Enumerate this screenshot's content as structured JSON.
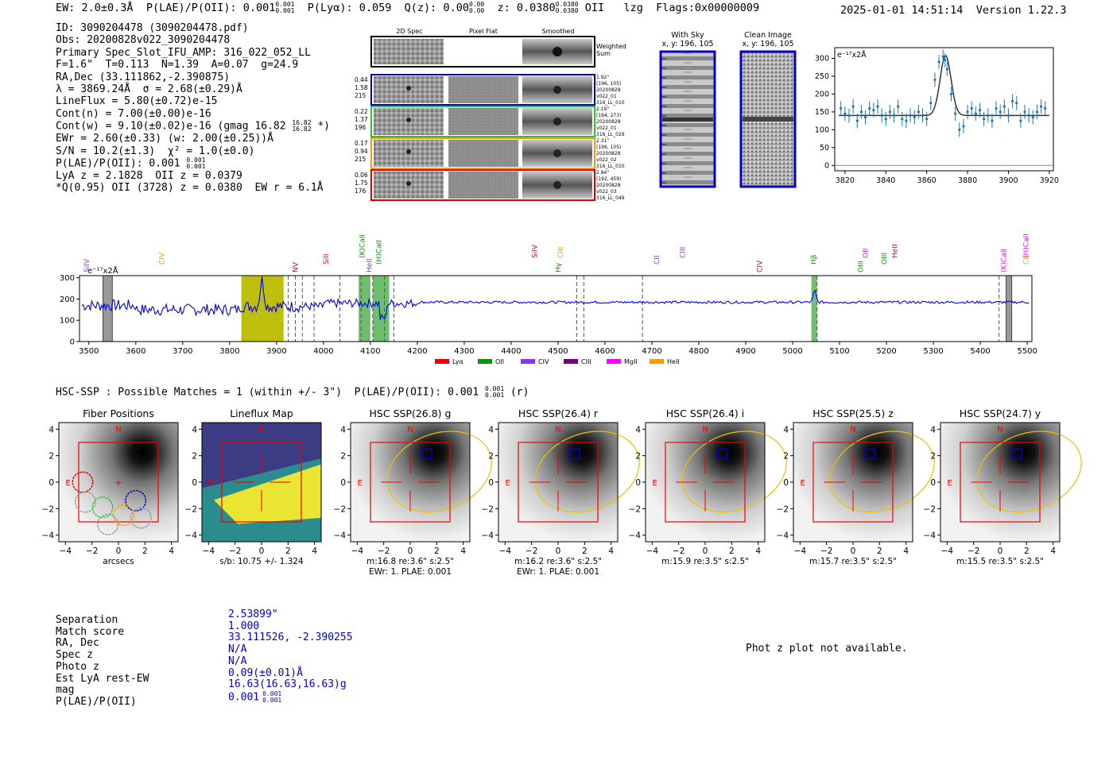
{
  "header": {
    "ew": "EW: 2.0±0.3Å",
    "plae": "P(LAE)/P(OII): 0.001",
    "plae_sup": "0.001",
    "plae_sub": "0.001",
    "plya": "P(Lyα): 0.059",
    "qz": "Q(z): 0.00",
    "qz_sup": "0.00",
    "qz_sub": "0.00",
    "z": "z: 0.0380",
    "z_sup": "0.0380",
    "z_sub": "0.0380",
    "line": "OII",
    "lzg": "lzg",
    "flags": "Flags:0x00000009",
    "timestamp": "2025-01-01 14:51:14",
    "version": "Version 1.22.3"
  },
  "info": {
    "id": "ID: 3090204478 (3090204478.pdf)",
    "obs": "Obs: 20200828v022_3090204478",
    "primary": "Primary Spec_Slot_IFU_AMP: 316_022_052_LL",
    "fit": "F=1.6\"  T=0.113  N=1.39  A=0.07  g=24.9",
    "radec": "RA,Dec (33.111862,-2.390875)",
    "lambda": "λ = 3869.24Å  σ = 2.68(±0.29)Å",
    "lineflux": "LineFlux = 5.80(±0.72)e-15",
    "contn": "Cont(n) = 7.00(±0.00)e-16",
    "contw": "Cont(w) = 9.10(±0.02)e-16 (gmag 16.82",
    "contw_sup": "16.82",
    "contw_sub": "16.82",
    "contw_end": " *)",
    "ewr": "EWr = 2.60(±0.33) (w: 2.00(±0.25))Å",
    "sn": "S/N = 10.2(±1.3)  χ² = 1.0(±0.0)",
    "plae": "P(LAE)/P(OII): 0.001",
    "plae_sup": "0.001",
    "plae_sub": "0.001",
    "lya": "LyA z = 2.1828  OII z = 0.0379",
    "q": "*Q(0.95) OII (3728) z = 0.0380  EW r = 6.1Å"
  },
  "cutout_panel": {
    "headers": [
      "2D Spec",
      "Pixel Flat",
      "Smoothed"
    ],
    "weighted_label": "Weighted\nSum",
    "rows": [
      {
        "left": [
          "0.44",
          "1.58",
          "215"
        ],
        "right": [
          "1.92\"",
          "(196, 105)",
          "20200828",
          "v022_01",
          "316_LL_010"
        ],
        "color": "#0000dd"
      },
      {
        "left": [
          "0.22",
          "1.37",
          "196"
        ],
        "right": [
          "2.19\"",
          "(194, 273)",
          "20200828",
          "v022_01",
          "316_LL_029"
        ],
        "color": "#22cc22"
      },
      {
        "left": [
          "0.17",
          "0.94",
          "215"
        ],
        "right": [
          "2.31\"",
          "(196, 105)",
          "20200828",
          "v022_02",
          "316_LL_010"
        ],
        "color": "#ff9900"
      },
      {
        "left": [
          "0.06",
          "1.75",
          "176"
        ],
        "right": [
          "2.84\"",
          "(192, 459)",
          "20200828",
          "v022_03",
          "316_LL_049"
        ],
        "color": "#dd0000"
      }
    ]
  },
  "sky_panels": {
    "with_sky": {
      "title": "With Sky",
      "coords": "x, y: 196, 105"
    },
    "clean": {
      "title": "Clean Image",
      "coords": "x, y: 196, 105"
    }
  },
  "colors": {
    "spectrum": "#0000ee",
    "fit_line": "#333333",
    "points": "#1f77b4",
    "olive": "#bbbb00",
    "green_band": "#66bb66",
    "red_box": "#ee0000"
  },
  "chart_data": [
    {
      "type": "scatter",
      "name": "line-fit",
      "unit_label": "e⁻¹⁷x2Å",
      "xlim": [
        3815,
        3922
      ],
      "ylim": [
        -15,
        330
      ],
      "xticks": [
        3820,
        3840,
        3860,
        3880,
        3900,
        3920
      ],
      "yticks": [
        0,
        50,
        100,
        150,
        200,
        250,
        300
      ],
      "x": [
        3818,
        3820,
        3822,
        3824,
        3826,
        3828,
        3830,
        3832,
        3834,
        3836,
        3838,
        3840,
        3842,
        3844,
        3846,
        3848,
        3850,
        3852,
        3854,
        3856,
        3858,
        3860,
        3862,
        3864,
        3866,
        3868,
        3869,
        3870,
        3872,
        3874,
        3876,
        3878,
        3880,
        3882,
        3884,
        3886,
        3888,
        3890,
        3892,
        3894,
        3896,
        3898,
        3900,
        3902,
        3904,
        3906,
        3908,
        3910,
        3912,
        3914,
        3916,
        3918
      ],
      "y": [
        160,
        145,
        140,
        165,
        125,
        150,
        135,
        160,
        155,
        165,
        140,
        130,
        150,
        140,
        165,
        130,
        125,
        140,
        135,
        150,
        140,
        130,
        175,
        240,
        290,
        305,
        295,
        270,
        200,
        145,
        100,
        110,
        150,
        160,
        145,
        155,
        130,
        140,
        125,
        160,
        150,
        165,
        140,
        180,
        175,
        125,
        150,
        140,
        135,
        150,
        165,
        160
      ],
      "yerr": 20,
      "fit": {
        "continuum": 140,
        "amplitude": 168,
        "center": 3869.24,
        "sigma": 2.68
      }
    },
    {
      "type": "line",
      "name": "full-spectrum",
      "unit_label": "e⁻¹⁷x2Å",
      "xlim": [
        3480,
        5510
      ],
      "ylim": [
        0,
        310
      ],
      "xticks": [
        3500,
        3600,
        3700,
        3800,
        3900,
        4000,
        4100,
        4200,
        4300,
        4400,
        4500,
        4600,
        4700,
        4800,
        4900,
        5000,
        5100,
        5200,
        5300,
        5400,
        5500
      ],
      "yticks": [
        0,
        100,
        200,
        300
      ],
      "peak_x": 3869,
      "peak_y": 295,
      "second_peak_x": 5047,
      "second_peak_y": 240,
      "highlight_bands": [
        {
          "x0": 3825,
          "x1": 3915,
          "color": "olive"
        },
        {
          "x0": 4075,
          "x1": 4100,
          "color": "green"
        },
        {
          "x0": 4105,
          "x1": 4140,
          "color": "green"
        },
        {
          "x0": 5040,
          "x1": 5052,
          "color": "green"
        }
      ],
      "gray_bars": [
        {
          "x0": 3530,
          "x1": 3550
        },
        {
          "x0": 5455,
          "x1": 5467
        }
      ],
      "dashed_lines": [
        3925,
        3940,
        3955,
        3980,
        4035,
        4080,
        4105,
        4130,
        4150,
        4540,
        4555,
        4680,
        5052,
        5440
      ],
      "line_labels": [
        {
          "text": "SiIV",
          "x": 3495,
          "color": "#8833ff"
        },
        {
          "text": "CIV",
          "x": 3655,
          "color": "#ff9900"
        },
        {
          "text": "CIII",
          "x": 4505,
          "color": "#ff9900"
        },
        {
          "text": "NV",
          "x": 3940,
          "color": "#ee0000"
        },
        {
          "text": "SiII",
          "x": 4005,
          "color": "#ee0000"
        },
        {
          "text": "(K)CaII",
          "x": 4082,
          "color": "#009900"
        },
        {
          "text": "HeII",
          "x": 4098,
          "color": "#8833ff"
        },
        {
          "text": "(H)CaII",
          "x": 4118,
          "color": "#009900"
        },
        {
          "text": "SiIV",
          "x": 4450,
          "color": "#ee0000"
        },
        {
          "text": "Hγ",
          "x": 4500,
          "color": "#009900"
        },
        {
          "text": "CII",
          "x": 4710,
          "color": "#8833ff"
        },
        {
          "text": "CIII",
          "x": 4765,
          "color": "#8833ff"
        },
        {
          "text": "CIV",
          "x": 4930,
          "color": "#ee0000"
        },
        {
          "text": "Hβ",
          "x": 5045,
          "color": "#009900"
        },
        {
          "text": "OII",
          "x": 5155,
          "color": "#ff00ff"
        },
        {
          "text": "OIII",
          "x": 5145,
          "color": "#009900"
        },
        {
          "text": "OIII",
          "x": 5195,
          "color": "#009900"
        },
        {
          "text": "HeII",
          "x": 5218,
          "color": "#ee0000"
        },
        {
          "text": "(K)CaII",
          "x": 5450,
          "color": "#ff00ff"
        },
        {
          "text": "CII",
          "x": 5497,
          "color": "#ff9900"
        },
        {
          "text": "(H)CaII",
          "x": 5497,
          "color": "#ff00ff"
        }
      ],
      "legend": [
        {
          "label": "Lyα",
          "color": "#ee0000"
        },
        {
          "label": "OII",
          "color": "#009900"
        },
        {
          "label": "CIV",
          "color": "#8833ff"
        },
        {
          "label": "CIII",
          "color": "#770077"
        },
        {
          "label": "MgII",
          "color": "#ff00ff"
        },
        {
          "label": "HeII",
          "color": "#ff9900"
        }
      ]
    }
  ],
  "hsc": {
    "line": "HSC-SSP : Possible Matches = 1 (within +/- 3\")  P(LAE)/P(OII): 0.001",
    "sup": "0.001",
    "sub": "0.001",
    "band": "(r)"
  },
  "stamps": {
    "ticks": [
      "−4",
      "−2",
      "0",
      "2",
      "4"
    ],
    "n_label": "N",
    "e_label": "E",
    "panels": [
      {
        "title": "Fiber Positions",
        "cap1": "arcsecs",
        "cap2": ""
      },
      {
        "title": "Lineflux Map",
        "cap1": "s/b: 10.75 +/- 1.324",
        "cap2": ""
      },
      {
        "title": "HSC SSP(26.8) g",
        "cap1": "m:16.8  re:3.6\"  s:2.5\"",
        "cap2": "EWr: 1. PLAE: 0.001"
      },
      {
        "title": "HSC SSP(26.4) r",
        "cap1": "m:16.2  re:3.6\"  s:2.5\"",
        "cap2": "EWr: 1. PLAE: 0.001"
      },
      {
        "title": "HSC SSP(26.4) i",
        "cap1": "m:15.9  re:3.5\"  s:2.5\"",
        "cap2": ""
      },
      {
        "title": "HSC SSP(25.5) z",
        "cap1": "m:15.7  re:3.5\"  s:2.5\"",
        "cap2": ""
      },
      {
        "title": "HSC SSP(24.7) y",
        "cap1": "m:15.5  re:3.5\"  s:2.5\"",
        "cap2": ""
      }
    ]
  },
  "match": {
    "labels": [
      "Separation",
      "Match score",
      "RA, Dec",
      "Spec z",
      "Photo z",
      "Est LyA rest-EW",
      "mag",
      "P(LAE)/P(OII)"
    ],
    "values": [
      "2.53899\"",
      "1.000",
      "33.111526, -2.390255",
      "N/A",
      "N/A",
      "0.09(±0.01)Å",
      "16.63(16.63,16.63)g",
      "0.001"
    ],
    "plae_sup": "0.001",
    "plae_sub": "0.001",
    "phot_z": "Phot z plot not available."
  }
}
